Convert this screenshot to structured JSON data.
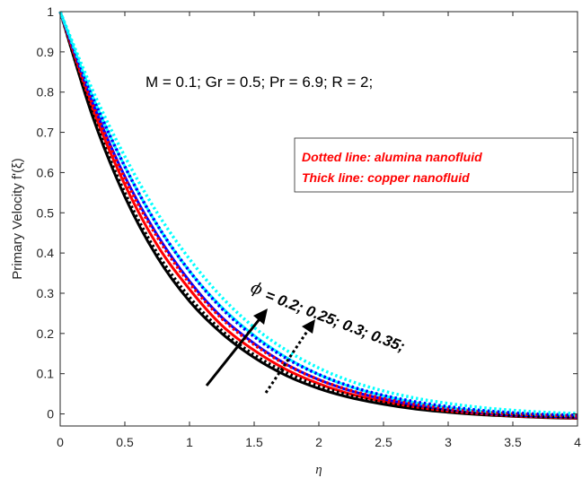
{
  "chart_data": {
    "type": "line",
    "title": "",
    "xlabel": "η",
    "ylabel": "Primary Velocity f'(ξ)",
    "xlim": [
      0,
      4
    ],
    "ylim": [
      -0.03,
      1
    ],
    "xticks": [
      "0",
      "0.5",
      "1",
      "1.5",
      "2",
      "2.5",
      "3",
      "3.5",
      "4"
    ],
    "yticks": [
      "0",
      "0.1",
      "0.2",
      "0.3",
      "0.4",
      "0.5",
      "0.6",
      "0.7",
      "0.8",
      "0.9",
      "1"
    ],
    "grid": false,
    "parameters_text": "M = 0.1; Gr = 0.5; Pr = 6.9; R = 2;",
    "legend_box": {
      "line1": "Dotted line: alumina nanofluid",
      "line2": "Thick line:   copper nanofluid"
    },
    "phi_annotation": {
      "symbol": "ϕ",
      "text": "= 0.2; 0.25; 0.3; 0.35;"
    },
    "x": [
      0,
      0.25,
      0.5,
      0.75,
      1,
      1.25,
      1.5,
      1.75,
      2,
      2.25,
      2.5,
      2.75,
      3,
      3.25,
      3.5,
      3.75,
      4
    ],
    "series": [
      {
        "style": "solid",
        "color": "#000000",
        "values": [
          1,
          0.74,
          0.54,
          0.39,
          0.28,
          0.2,
          0.14,
          0.095,
          0.063,
          0.04,
          0.024,
          0.012,
          0.004,
          -0.002,
          -0.006,
          -0.009,
          -0.011
        ]
      },
      {
        "style": "solid",
        "color": "#ff0000",
        "values": [
          1,
          0.76,
          0.57,
          0.42,
          0.31,
          0.22,
          0.158,
          0.11,
          0.075,
          0.049,
          0.031,
          0.017,
          0.007,
          0,
          -0.005,
          -0.008,
          -0.01
        ]
      },
      {
        "style": "solid",
        "color": "#0000ff",
        "values": [
          1,
          0.775,
          0.59,
          0.445,
          0.33,
          0.24,
          0.175,
          0.123,
          0.085,
          0.057,
          0.037,
          0.022,
          0.011,
          0.003,
          -0.003,
          -0.006,
          -0.008
        ]
      },
      {
        "style": "solid",
        "color": "#00ffff",
        "values": [
          1,
          0.79,
          0.615,
          0.47,
          0.355,
          0.265,
          0.195,
          0.14,
          0.098,
          0.067,
          0.045,
          0.028,
          0.016,
          0.007,
          0.001,
          -0.003,
          -0.005
        ]
      },
      {
        "style": "dotted",
        "color": "#000000",
        "values": [
          1,
          0.745,
          0.55,
          0.4,
          0.29,
          0.207,
          0.147,
          0.102,
          0.069,
          0.045,
          0.028,
          0.016,
          0.007,
          0,
          -0.004,
          -0.007,
          -0.008
        ]
      },
      {
        "style": "dotted",
        "color": "#ff0000",
        "values": [
          1,
          0.77,
          0.585,
          0.44,
          0.325,
          0.237,
          0.172,
          0.122,
          0.085,
          0.058,
          0.038,
          0.024,
          0.013,
          0.005,
          0,
          -0.003,
          -0.005
        ]
      },
      {
        "style": "dotted",
        "color": "#0000ff",
        "values": [
          1,
          0.79,
          0.615,
          0.47,
          0.355,
          0.262,
          0.192,
          0.138,
          0.098,
          0.068,
          0.046,
          0.03,
          0.018,
          0.009,
          0.003,
          -0.001,
          -0.003
        ]
      },
      {
        "style": "dotted",
        "color": "#00ffff",
        "values": [
          1,
          0.805,
          0.64,
          0.5,
          0.385,
          0.29,
          0.215,
          0.158,
          0.114,
          0.081,
          0.057,
          0.039,
          0.026,
          0.016,
          0.009,
          0.004,
          0.001
        ]
      }
    ]
  }
}
